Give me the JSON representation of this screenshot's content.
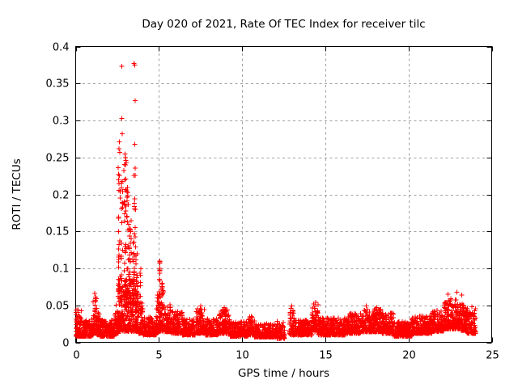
{
  "chart_data": {
    "type": "scatter",
    "title": "Day 020 of 2021, Rate Of TEC Index for receiver tilc",
    "xlabel": "GPS time / hours",
    "ylabel": "ROTI / TECUs",
    "xlim": [
      0,
      25
    ],
    "ylim": [
      0,
      0.4
    ],
    "xticks": [
      [
        0,
        "0"
      ],
      [
        5,
        "5"
      ],
      [
        10,
        "10"
      ],
      [
        15,
        "15"
      ],
      [
        20,
        "20"
      ],
      [
        25,
        "25"
      ]
    ],
    "yticks": [
      [
        0,
        "0"
      ],
      [
        0.05,
        "0.05"
      ],
      [
        0.1,
        "0.1"
      ],
      [
        0.15,
        "0.15"
      ],
      [
        0.2,
        "0.2"
      ],
      [
        0.25,
        "0.25"
      ],
      [
        0.3,
        "0.3"
      ],
      [
        0.35,
        "0.35"
      ],
      [
        0.4,
        "0.4"
      ]
    ],
    "grid": "dashed-major-both-axes",
    "legend": "none",
    "marker": "plus",
    "colors": {
      "marker": "#ff0000",
      "grid": "#a0a0a0",
      "frame": "#000000",
      "text": "#000000",
      "background": "#ffffff"
    },
    "features": {
      "max_value": 0.377,
      "max_time_hours": 3.5,
      "main_burst_hours": [
        2.5,
        3.8
      ],
      "secondary_spike_hours": 5.1,
      "secondary_spike_value": 0.115,
      "data_gap_hours": [
        12.55,
        12.85
      ],
      "data_span_hours": [
        0,
        24.05
      ]
    },
    "series": {
      "name": "ROTI",
      "baseline_bands": [
        [
          0.02,
          0.35,
          0.008,
          0.045,
          80
        ],
        [
          0.35,
          0.95,
          0.008,
          0.03,
          120
        ],
        [
          0.95,
          1.05,
          0.01,
          0.04,
          25
        ],
        [
          1.05,
          1.3,
          0.012,
          0.062,
          60
        ],
        [
          1.3,
          1.45,
          0.01,
          0.04,
          35
        ],
        [
          1.45,
          2.35,
          0.008,
          0.03,
          170
        ],
        [
          2.35,
          2.55,
          0.012,
          0.055,
          45
        ],
        [
          2.55,
          3.75,
          0.015,
          0.085,
          320
        ],
        [
          3.75,
          4.05,
          0.012,
          0.055,
          70
        ],
        [
          4.05,
          4.85,
          0.01,
          0.034,
          150
        ],
        [
          4.85,
          5.3,
          0.015,
          0.07,
          100
        ],
        [
          5.3,
          5.75,
          0.014,
          0.052,
          85
        ],
        [
          5.75,
          6.4,
          0.012,
          0.042,
          120
        ],
        [
          6.4,
          7.2,
          0.01,
          0.032,
          150
        ],
        [
          7.2,
          7.8,
          0.012,
          0.046,
          110
        ],
        [
          7.8,
          8.6,
          0.01,
          0.032,
          150
        ],
        [
          8.6,
          9.25,
          0.012,
          0.045,
          120
        ],
        [
          9.25,
          10.35,
          0.008,
          0.028,
          200
        ],
        [
          10.35,
          10.75,
          0.01,
          0.035,
          70
        ],
        [
          10.75,
          12.1,
          0.007,
          0.025,
          240
        ],
        [
          12.1,
          12.55,
          0.005,
          0.03,
          55
        ],
        [
          12.85,
          13.1,
          0.01,
          0.048,
          45
        ],
        [
          13.1,
          14.2,
          0.01,
          0.03,
          200
        ],
        [
          14.2,
          14.6,
          0.014,
          0.052,
          70
        ],
        [
          14.6,
          16.3,
          0.01,
          0.033,
          300
        ],
        [
          16.3,
          17.15,
          0.012,
          0.04,
          150
        ],
        [
          17.15,
          18.4,
          0.014,
          0.046,
          220
        ],
        [
          18.4,
          19.1,
          0.012,
          0.04,
          130
        ],
        [
          19.1,
          20.2,
          0.008,
          0.028,
          200
        ],
        [
          20.2,
          21.4,
          0.012,
          0.036,
          220
        ],
        [
          21.4,
          22.15,
          0.015,
          0.045,
          140
        ],
        [
          22.15,
          23.1,
          0.018,
          0.058,
          180
        ],
        [
          23.1,
          23.45,
          0.016,
          0.052,
          65
        ],
        [
          23.45,
          24.05,
          0.012,
          0.046,
          110
        ]
      ],
      "burst_columns": [
        [
          2.62,
          0.06,
          0.05,
          0.24,
          22
        ],
        [
          2.78,
          0.05,
          0.06,
          0.22,
          20
        ],
        [
          2.98,
          0.07,
          0.05,
          0.255,
          30
        ],
        [
          3.12,
          0.07,
          0.05,
          0.21,
          28
        ],
        [
          3.28,
          0.06,
          0.05,
          0.165,
          24
        ],
        [
          3.45,
          0.06,
          0.05,
          0.14,
          18
        ],
        [
          3.55,
          0.05,
          0.05,
          0.24,
          20
        ],
        [
          3.65,
          0.05,
          0.04,
          0.12,
          14
        ],
        [
          3.9,
          0.05,
          0.04,
          0.1,
          10
        ],
        [
          5.05,
          0.04,
          0.04,
          0.113,
          14
        ],
        [
          5.17,
          0.05,
          0.035,
          0.085,
          12
        ]
      ],
      "outlier_points": [
        [
          2.77,
          0.373
        ],
        [
          3.5,
          0.377
        ],
        [
          3.56,
          0.375
        ],
        [
          3.57,
          0.327
        ],
        [
          2.77,
          0.303
        ],
        [
          2.79,
          0.282
        ],
        [
          2.63,
          0.271
        ],
        [
          3.55,
          0.268
        ],
        [
          2.6,
          0.262
        ],
        [
          2.66,
          0.257
        ],
        [
          2.98,
          0.25
        ],
        [
          3.02,
          0.246
        ],
        [
          2.56,
          0.236
        ],
        [
          2.9,
          0.232
        ],
        [
          2.61,
          0.215
        ],
        [
          2.75,
          0.209
        ],
        [
          3.05,
          0.206
        ],
        [
          5.05,
          0.11
        ],
        [
          5.06,
          0.098
        ],
        [
          1.15,
          0.066
        ],
        [
          1.19,
          0.061
        ],
        [
          22.38,
          0.065
        ],
        [
          22.9,
          0.068
        ],
        [
          23.2,
          0.064
        ],
        [
          22.55,
          0.059
        ],
        [
          14.42,
          0.054
        ],
        [
          12.98,
          0.049
        ],
        [
          7.52,
          0.049
        ],
        [
          8.92,
          0.047
        ],
        [
          17.45,
          0.049
        ],
        [
          18.1,
          0.047
        ],
        [
          23.8,
          0.048
        ]
      ]
    }
  }
}
